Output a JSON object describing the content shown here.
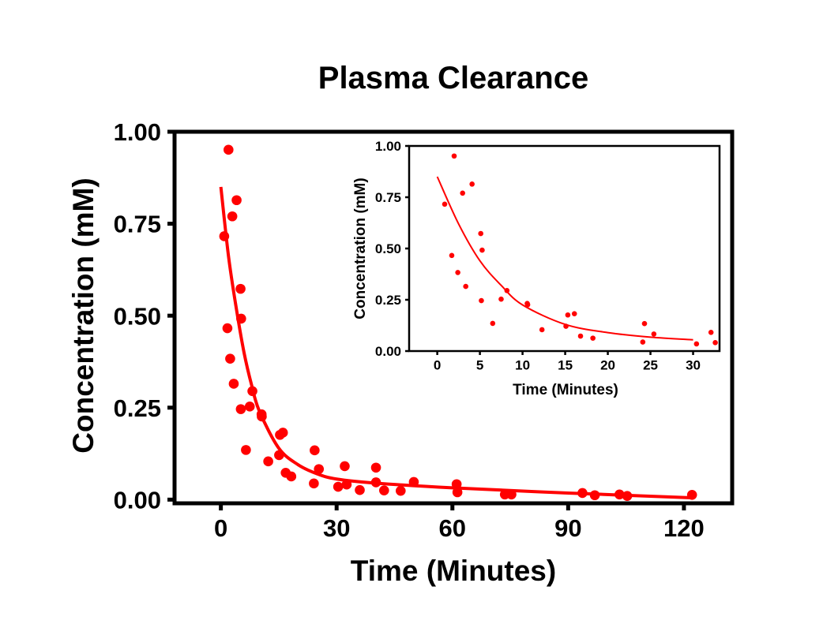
{
  "chart_data": [
    {
      "type": "scatter",
      "title": "Plasma Clearance",
      "xlabel": "Time (Minutes)",
      "ylabel": "Concentration (mM)",
      "xlim": [
        -12,
        132.5
      ],
      "ylim": [
        -0.01,
        1.0
      ],
      "xticks": [
        0,
        30,
        60,
        90,
        120
      ],
      "xtick_labels": [
        "0",
        "30",
        "60",
        "90",
        "120"
      ],
      "yticks": [
        0,
        0.25,
        0.5,
        0.75,
        1.0
      ],
      "ytick_labels": [
        "0.00",
        "0.25",
        "0.50",
        "0.75",
        "1.00"
      ],
      "grid": false,
      "color": "#ff0000",
      "points": [
        [
          0.87,
          0.716
        ],
        [
          1.98,
          0.951
        ],
        [
          2.97,
          0.77
        ],
        [
          4.08,
          0.814
        ],
        [
          1.7,
          0.466
        ],
        [
          2.41,
          0.383
        ],
        [
          3.34,
          0.315
        ],
        [
          5.1,
          0.573
        ],
        [
          5.26,
          0.492
        ],
        [
          5.17,
          0.246
        ],
        [
          6.5,
          0.135
        ],
        [
          7.49,
          0.253
        ],
        [
          8.17,
          0.295
        ],
        [
          10.55,
          0.232
        ],
        [
          10.6,
          0.226
        ],
        [
          12.28,
          0.104
        ],
        [
          15.09,
          0.121
        ],
        [
          15.31,
          0.176
        ],
        [
          16.08,
          0.182
        ],
        [
          16.8,
          0.073
        ],
        [
          18.25,
          0.063
        ],
        [
          24.1,
          0.044
        ],
        [
          24.3,
          0.134
        ],
        [
          25.4,
          0.083
        ],
        [
          30.4,
          0.035
        ],
        [
          32.1,
          0.091
        ],
        [
          32.6,
          0.041
        ],
        [
          36.0,
          0.026
        ],
        [
          40.2,
          0.087
        ],
        [
          40.2,
          0.047
        ],
        [
          42.3,
          0.025
        ],
        [
          46.6,
          0.024
        ],
        [
          50.0,
          0.048
        ],
        [
          61.1,
          0.042
        ],
        [
          61.3,
          0.02
        ],
        [
          73.6,
          0.014
        ],
        [
          75.3,
          0.014
        ],
        [
          93.7,
          0.018
        ],
        [
          96.9,
          0.012
        ],
        [
          103.3,
          0.014
        ],
        [
          105.3,
          0.01
        ],
        [
          122.1,
          0.013
        ]
      ],
      "fit_curve": [
        [
          0,
          0.85
        ],
        [
          2,
          0.66
        ],
        [
          4,
          0.52
        ],
        [
          6,
          0.4
        ],
        [
          8,
          0.31
        ],
        [
          10,
          0.24
        ],
        [
          15,
          0.14
        ],
        [
          20,
          0.095
        ],
        [
          25,
          0.07
        ],
        [
          30,
          0.056
        ],
        [
          40,
          0.045
        ],
        [
          60,
          0.032
        ],
        [
          90,
          0.018
        ],
        [
          122,
          0.005
        ]
      ]
    },
    {
      "type": "scatter",
      "title": "",
      "xlabel": "Time (Minutes)",
      "ylabel": "Concentration (mM)",
      "xlim": [
        -3.3,
        33.1
      ],
      "ylim": [
        0,
        1.0
      ],
      "xticks": [
        0,
        5,
        10,
        15,
        20,
        25,
        30
      ],
      "xtick_labels": [
        "0",
        "5",
        "10",
        "15",
        "20",
        "25",
        "30"
      ],
      "yticks": [
        0,
        0.25,
        0.5,
        0.75,
        1.0
      ],
      "ytick_labels": [
        "0.00",
        "0.25",
        "0.50",
        "0.75",
        "1.00"
      ],
      "grid": false,
      "color": "#ff0000",
      "fit_curve": [
        [
          0,
          0.85
        ],
        [
          2.5,
          0.62
        ],
        [
          5,
          0.44
        ],
        [
          7.5,
          0.32
        ],
        [
          10,
          0.225
        ],
        [
          15,
          0.13
        ],
        [
          20,
          0.09
        ],
        [
          25,
          0.068
        ],
        [
          30,
          0.055
        ]
      ]
    }
  ]
}
